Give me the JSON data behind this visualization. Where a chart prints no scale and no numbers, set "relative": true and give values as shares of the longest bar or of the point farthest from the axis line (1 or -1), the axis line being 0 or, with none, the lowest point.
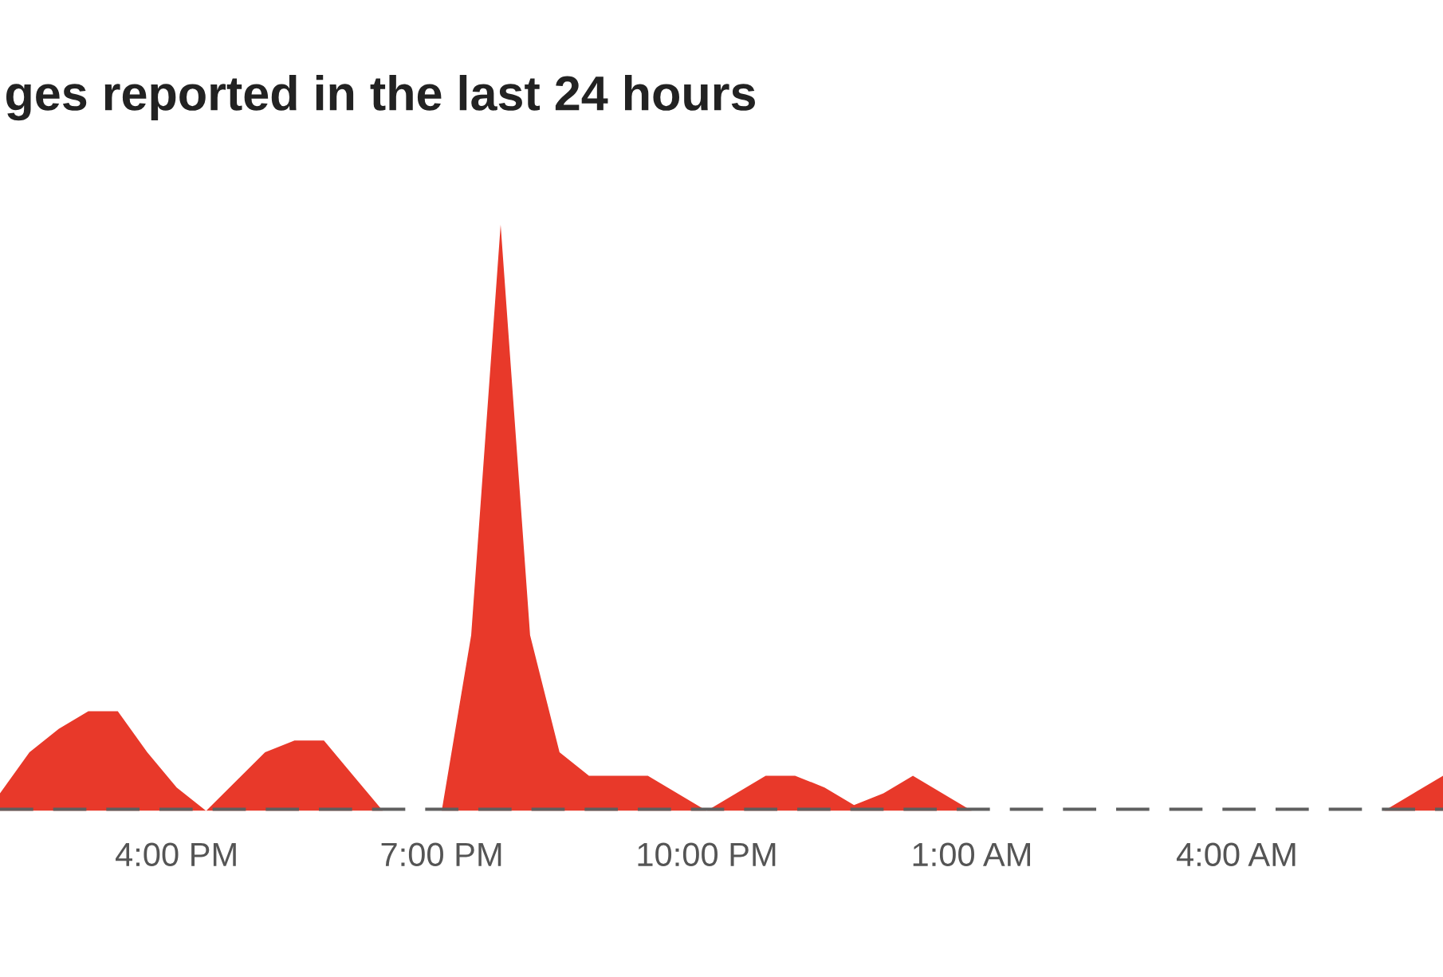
{
  "chart_data": {
    "type": "area",
    "title": "ges reported in the last 24 hours",
    "relative": true,
    "categories": [
      null,
      null,
      null,
      null,
      null,
      null,
      "4:00 PM",
      null,
      null,
      null,
      null,
      null,
      null,
      null,
      null,
      "7:00 PM",
      null,
      null,
      null,
      null,
      null,
      null,
      null,
      null,
      "10:00 PM",
      null,
      null,
      null,
      null,
      null,
      null,
      null,
      null,
      "1:00 AM",
      null,
      null,
      null,
      null,
      null,
      null,
      null,
      null,
      "4:00 AM",
      null,
      null,
      null,
      null,
      null,
      null,
      null
    ],
    "series": [
      {
        "color": "#e8392a",
        "values": [
          0.03,
          0.1,
          0.14,
          0.17,
          0.17,
          0.1,
          0.04,
          0,
          0.05,
          0.1,
          0.12,
          0.12,
          0.06,
          0,
          0,
          0,
          0.3,
          1,
          0.3,
          0.1,
          0.06,
          0.06,
          0.06,
          0.03,
          0,
          0.03,
          0.06,
          0.06,
          0.04,
          0.01,
          0.03,
          0.06,
          0.03,
          0,
          0,
          0,
          0,
          0,
          0,
          0,
          0,
          0,
          0,
          0,
          0,
          0,
          0,
          0,
          0.03,
          0.06
        ]
      }
    ],
    "ref_lines": [
      {
        "axis": "y",
        "value": 0,
        "color": "#5f5f5f",
        "line_style": "dashed"
      }
    ]
  }
}
